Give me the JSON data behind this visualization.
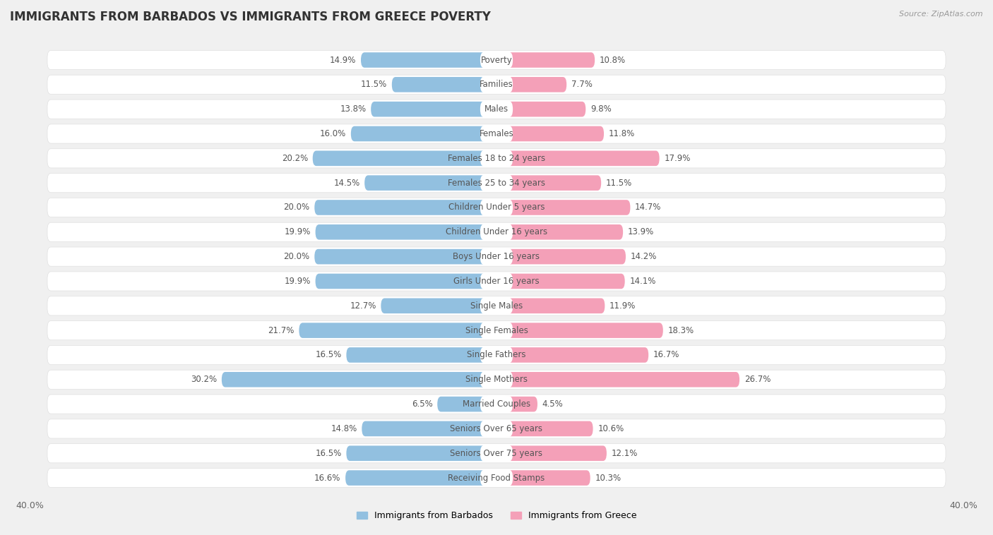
{
  "title": "IMMIGRANTS FROM BARBADOS VS IMMIGRANTS FROM GREECE POVERTY",
  "source": "Source: ZipAtlas.com",
  "categories": [
    "Poverty",
    "Families",
    "Males",
    "Females",
    "Females 18 to 24 years",
    "Females 25 to 34 years",
    "Children Under 5 years",
    "Children Under 16 years",
    "Boys Under 16 years",
    "Girls Under 16 years",
    "Single Males",
    "Single Females",
    "Single Fathers",
    "Single Mothers",
    "Married Couples",
    "Seniors Over 65 years",
    "Seniors Over 75 years",
    "Receiving Food Stamps"
  ],
  "barbados_values": [
    14.9,
    11.5,
    13.8,
    16.0,
    20.2,
    14.5,
    20.0,
    19.9,
    20.0,
    19.9,
    12.7,
    21.7,
    16.5,
    30.2,
    6.5,
    14.8,
    16.5,
    16.6
  ],
  "greece_values": [
    10.8,
    7.7,
    9.8,
    11.8,
    17.9,
    11.5,
    14.7,
    13.9,
    14.2,
    14.1,
    11.9,
    18.3,
    16.7,
    26.7,
    4.5,
    10.6,
    12.1,
    10.3
  ],
  "barbados_color": "#92C0E0",
  "greece_color": "#F4A0B8",
  "background_color": "#f0f0f0",
  "bar_background_color": "#ffffff",
  "xlim": 40.0,
  "scale": 0.78,
  "legend_labels": [
    "Immigrants from Barbados",
    "Immigrants from Greece"
  ],
  "title_fontsize": 12,
  "label_fontsize": 8.5,
  "value_fontsize": 8.5
}
